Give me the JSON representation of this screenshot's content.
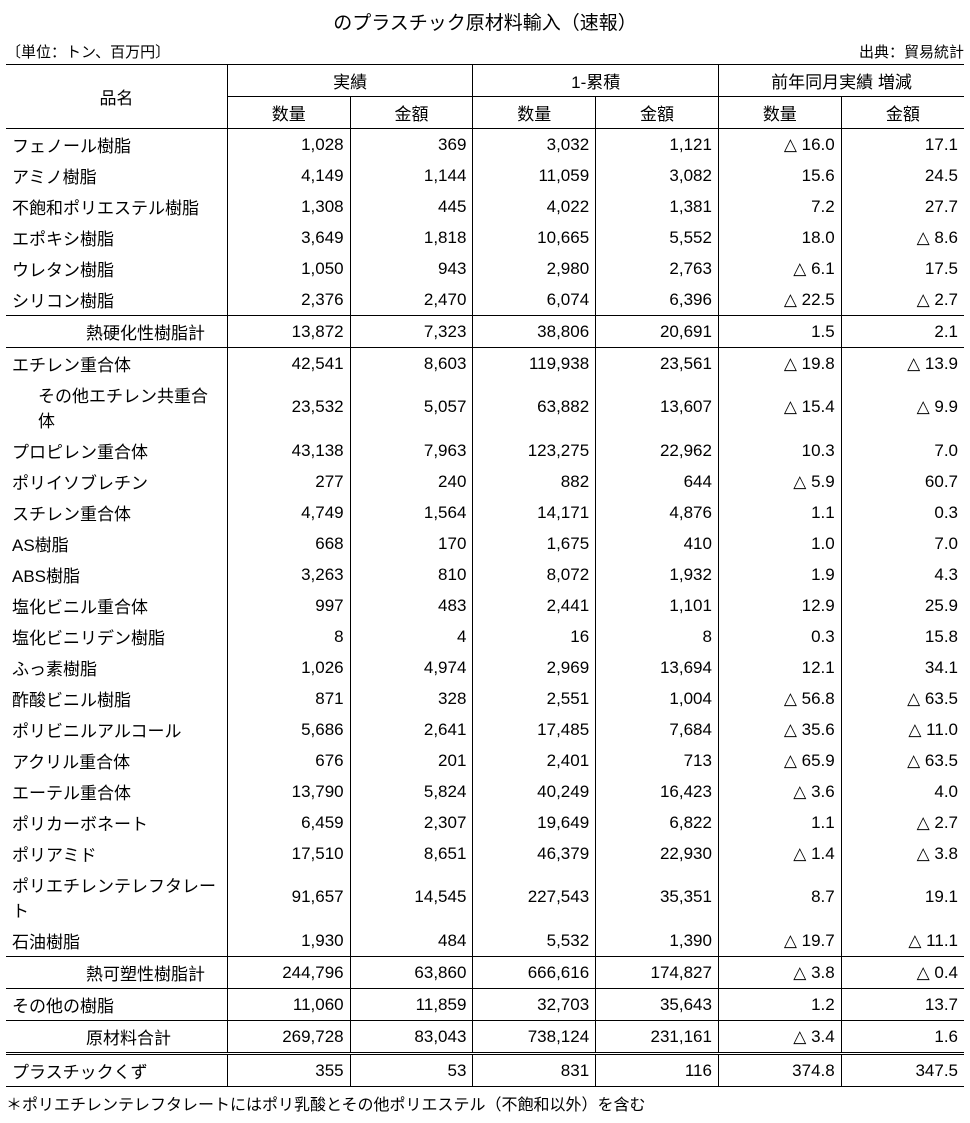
{
  "title": "のプラスチック原材料輸入（速報）",
  "unit_label": "〔単位：トン、百万円〕",
  "source_label": "出典：貿易統計",
  "headers": {
    "name": "品名",
    "group_actual": "実績",
    "group_cumulative": "1-累積",
    "group_yoy": "前年同月実績 増減",
    "qty": "数量",
    "amt": "金額"
  },
  "triangle": "△",
  "footnote": "＊ポリエチレンテレフタレートにはポリ乳酸とその他ポリエステル（不飽和以外）を含む",
  "rows": [
    {
      "name": "フェノール樹脂",
      "vals": [
        "1,028",
        "369",
        "3,032",
        "1,121",
        "△ 16.0",
        "17.1"
      ],
      "cls": ""
    },
    {
      "name": "アミノ樹脂",
      "vals": [
        "4,149",
        "1,144",
        "11,059",
        "3,082",
        "15.6",
        "24.5"
      ],
      "cls": ""
    },
    {
      "name": "不飽和ポリエステル樹脂",
      "vals": [
        "1,308",
        "445",
        "4,022",
        "1,381",
        "7.2",
        "27.7"
      ],
      "cls": ""
    },
    {
      "name": "エポキシ樹脂",
      "vals": [
        "3,649",
        "1,818",
        "10,665",
        "5,552",
        "18.0",
        "△ 8.6"
      ],
      "cls": ""
    },
    {
      "name": "ウレタン樹脂",
      "vals": [
        "1,050",
        "943",
        "2,980",
        "2,763",
        "△ 6.1",
        "17.5"
      ],
      "cls": ""
    },
    {
      "name": "シリコン樹脂",
      "vals": [
        "2,376",
        "2,470",
        "6,074",
        "6,396",
        "△ 22.5",
        "△ 2.7"
      ],
      "cls": "bottom-border"
    },
    {
      "name": "熱硬化性樹脂計",
      "vals": [
        "13,872",
        "7,323",
        "38,806",
        "20,691",
        "1.5",
        "2.1"
      ],
      "cls": "bottom-border",
      "nameCls": "indent2"
    },
    {
      "name": "エチレン重合体",
      "vals": [
        "42,541",
        "8,603",
        "119,938",
        "23,561",
        "△ 19.8",
        "△ 13.9"
      ],
      "cls": ""
    },
    {
      "name": "その他エチレン共重合体",
      "vals": [
        "23,532",
        "5,057",
        "63,882",
        "13,607",
        "△ 15.4",
        "△ 9.9"
      ],
      "cls": "",
      "nameCls": "indent1"
    },
    {
      "name": "プロピレン重合体",
      "vals": [
        "43,138",
        "7,963",
        "123,275",
        "22,962",
        "10.3",
        "7.0"
      ],
      "cls": ""
    },
    {
      "name": "ポリイソブレチン",
      "vals": [
        "277",
        "240",
        "882",
        "644",
        "△ 5.9",
        "60.7"
      ],
      "cls": ""
    },
    {
      "name": "スチレン重合体",
      "vals": [
        "4,749",
        "1,564",
        "14,171",
        "4,876",
        "1.1",
        "0.3"
      ],
      "cls": ""
    },
    {
      "name": "AS樹脂",
      "vals": [
        "668",
        "170",
        "1,675",
        "410",
        "1.0",
        "7.0"
      ],
      "cls": ""
    },
    {
      "name": "ABS樹脂",
      "vals": [
        "3,263",
        "810",
        "8,072",
        "1,932",
        "1.9",
        "4.3"
      ],
      "cls": ""
    },
    {
      "name": "塩化ビニル重合体",
      "vals": [
        "997",
        "483",
        "2,441",
        "1,101",
        "12.9",
        "25.9"
      ],
      "cls": ""
    },
    {
      "name": "塩化ビニリデン樹脂",
      "vals": [
        "8",
        "4",
        "16",
        "8",
        "0.3",
        "15.8"
      ],
      "cls": ""
    },
    {
      "name": "ふっ素樹脂",
      "vals": [
        "1,026",
        "4,974",
        "2,969",
        "13,694",
        "12.1",
        "34.1"
      ],
      "cls": ""
    },
    {
      "name": "酢酸ビニル樹脂",
      "vals": [
        "871",
        "328",
        "2,551",
        "1,004",
        "△ 56.8",
        "△ 63.5"
      ],
      "cls": ""
    },
    {
      "name": "ポリビニルアルコール",
      "vals": [
        "5,686",
        "2,641",
        "17,485",
        "7,684",
        "△ 35.6",
        "△ 11.0"
      ],
      "cls": ""
    },
    {
      "name": "アクリル重合体",
      "vals": [
        "676",
        "201",
        "2,401",
        "713",
        "△ 65.9",
        "△ 63.5"
      ],
      "cls": ""
    },
    {
      "name": "エーテル重合体",
      "vals": [
        "13,790",
        "5,824",
        "40,249",
        "16,423",
        "△ 3.6",
        "4.0"
      ],
      "cls": ""
    },
    {
      "name": "ポリカーボネート",
      "vals": [
        "6,459",
        "2,307",
        "19,649",
        "6,822",
        "1.1",
        "△ 2.7"
      ],
      "cls": ""
    },
    {
      "name": "ポリアミド",
      "vals": [
        "17,510",
        "8,651",
        "46,379",
        "22,930",
        "△ 1.4",
        "△ 3.8"
      ],
      "cls": ""
    },
    {
      "name": "ポリエチレンテレフタレート",
      "vals": [
        "91,657",
        "14,545",
        "227,543",
        "35,351",
        "8.7",
        "19.1"
      ],
      "cls": ""
    },
    {
      "name": "石油樹脂",
      "vals": [
        "1,930",
        "484",
        "5,532",
        "1,390",
        "△ 19.7",
        "△ 11.1"
      ],
      "cls": "bottom-border"
    },
    {
      "name": "熱可塑性樹脂計",
      "vals": [
        "244,796",
        "63,860",
        "666,616",
        "174,827",
        "△ 3.8",
        "△ 0.4"
      ],
      "cls": "bottom-border",
      "nameCls": "indent2"
    },
    {
      "name": "その他の樹脂",
      "vals": [
        "11,060",
        "11,859",
        "32,703",
        "35,643",
        "1.2",
        "13.7"
      ],
      "cls": "bottom-border"
    },
    {
      "name": "原材料合計",
      "vals": [
        "269,728",
        "83,043",
        "738,124",
        "231,161",
        "△ 3.4",
        "1.6"
      ],
      "cls": "dbl-bottom",
      "nameCls": "indent2"
    },
    {
      "name": "プラスチックくず",
      "vals": [
        "355",
        "53",
        "831",
        "116",
        "374.8",
        "347.5"
      ],
      "cls": "bottom-thick"
    }
  ],
  "colors": {
    "text": "#000000",
    "background": "#ffffff",
    "border": "#000000"
  },
  "typography": {
    "title_fontsize_pt": 14,
    "body_fontsize_pt": 13,
    "font_family": "MS PGothic"
  }
}
